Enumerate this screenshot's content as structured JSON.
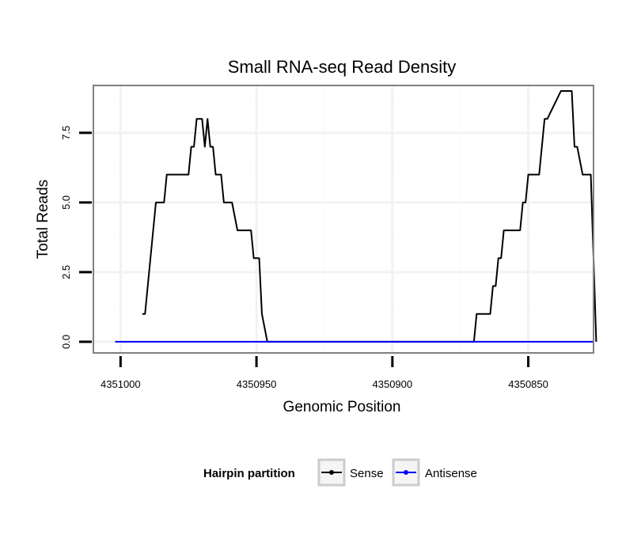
{
  "chart_data": {
    "type": "line",
    "title": "Small RNA-seq Read Density",
    "xlabel": "Genomic Position",
    "ylabel": "Total Reads",
    "xlim": [
      4351010,
      4350826
    ],
    "x_reversed": true,
    "ylim": [
      -0.4,
      9.2
    ],
    "xticks": [
      4351000,
      4350950,
      4350900,
      4350850
    ],
    "xtick_labels": [
      "4351000",
      "4350950",
      "4350900",
      "4350850"
    ],
    "yticks": [
      0,
      2.5,
      5,
      7.5
    ],
    "ytick_labels": [
      "0.0",
      "2.5",
      "5.0",
      "7.5"
    ],
    "grid": true,
    "legend": {
      "title": "Hairpin partition",
      "position": "bottom",
      "entries": [
        {
          "name": "Sense",
          "color": "#000000"
        },
        {
          "name": "Antisense",
          "color": "#0000ff"
        }
      ]
    },
    "series": [
      {
        "name": "Sense",
        "color": "#000000",
        "x": [
          4350992,
          4350991,
          4350989,
          4350988,
          4350987,
          4350984,
          4350983,
          4350981,
          4350975,
          4350974,
          4350973,
          4350972,
          4350970,
          4350969,
          4350968,
          4350967,
          4350966,
          4350965,
          4350964,
          4350963,
          4350962,
          4350961,
          4350960,
          4350959,
          4350957,
          4350954,
          4350953,
          4350952,
          4350951,
          4350949,
          4350948,
          4350946,
          4350945,
          4350943,
          4350942,
          4350941,
          4350935,
          4350929,
          4350923,
          4350917,
          4350911,
          4350905,
          4350899,
          4350893,
          4350887,
          4350881,
          4350878,
          4350875,
          4350874,
          4350870,
          4350869,
          4350868,
          4350867,
          4350866,
          4350865,
          4350864,
          4350863,
          4350862,
          4350861,
          4350860,
          4350859,
          4350858,
          4350857,
          4350856,
          4350855,
          4350853,
          4350852,
          4350851,
          4350850,
          4350849,
          4350848,
          4350846,
          4350845,
          4350844,
          4350843,
          4350838,
          4350837,
          4350836,
          4350834,
          4350833,
          4350832,
          4350830,
          4350827,
          4350825
        ],
        "values": [
          1,
          1,
          3,
          4,
          5,
          5,
          6,
          6,
          6,
          7,
          7,
          8,
          8,
          7,
          8,
          7,
          7,
          6,
          6,
          6,
          5,
          5,
          5,
          5,
          4,
          4,
          4,
          4,
          3,
          3,
          1,
          0,
          0,
          0,
          0,
          0,
          0,
          0,
          0,
          0,
          0,
          0,
          0,
          0,
          0,
          0,
          0,
          0,
          0,
          0,
          1,
          1,
          1,
          1,
          1,
          1,
          2,
          2,
          3,
          3,
          4,
          4,
          4,
          4,
          4,
          4,
          5,
          5,
          6,
          6,
          6,
          6,
          7,
          8,
          8,
          9,
          9,
          9,
          9,
          7,
          7,
          6,
          6,
          0
        ]
      },
      {
        "name": "Antisense",
        "color": "#0000ff",
        "x": [
          4351002,
          4350826
        ],
        "values": [
          0,
          0
        ]
      }
    ]
  }
}
